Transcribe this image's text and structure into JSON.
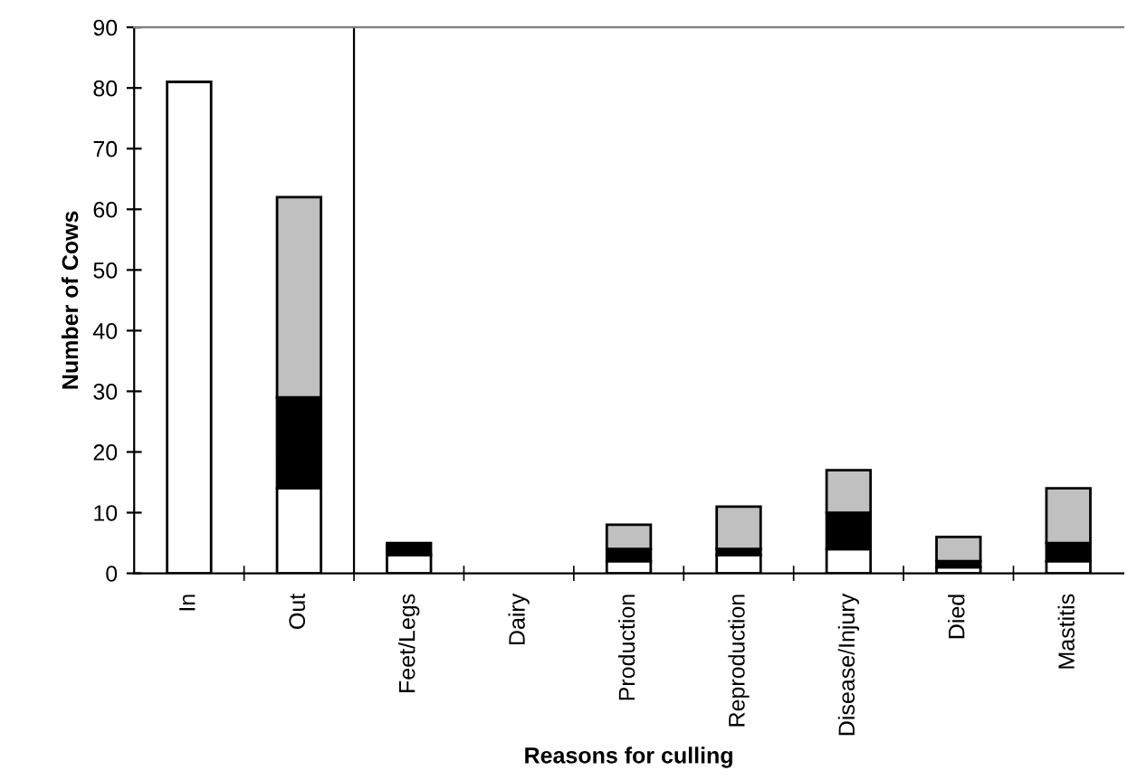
{
  "chart_data": {
    "type": "bar",
    "stacked": true,
    "xlabel": "Reasons for culling",
    "ylabel": "Number of Cows",
    "categories": [
      "In",
      "Out",
      "Feet/Legs",
      "Dairy",
      "Production",
      "Reproduction",
      "Disease/Injury",
      "Died",
      "Mastitis"
    ],
    "series": [
      {
        "color": "#ffffff",
        "values": [
          81,
          14,
          3,
          0,
          2,
          3,
          4,
          1,
          2
        ]
      },
      {
        "color": "#000000",
        "values": [
          0,
          15,
          2,
          0,
          2,
          1,
          6,
          1,
          3
        ]
      },
      {
        "color": "#c0c0c0",
        "values": [
          0,
          33,
          0,
          0,
          4,
          7,
          7,
          4,
          9
        ]
      }
    ],
    "ylim": [
      0,
      90
    ],
    "yticks": [
      0,
      10,
      20,
      30,
      40,
      50,
      60,
      70,
      80,
      90
    ],
    "grid": false,
    "legend": false
  }
}
